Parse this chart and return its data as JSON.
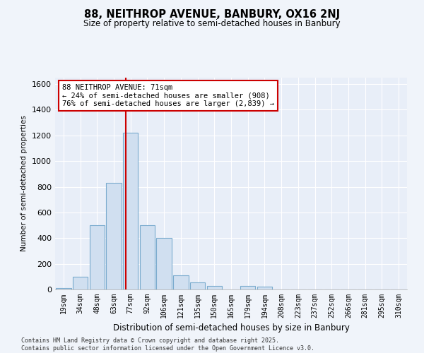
{
  "title_line1": "88, NEITHROP AVENUE, BANBURY, OX16 2NJ",
  "title_line2": "Size of property relative to semi-detached houses in Banbury",
  "xlabel": "Distribution of semi-detached houses by size in Banbury",
  "ylabel": "Number of semi-detached properties",
  "categories": [
    "19sqm",
    "34sqm",
    "48sqm",
    "63sqm",
    "77sqm",
    "92sqm",
    "106sqm",
    "121sqm",
    "135sqm",
    "150sqm",
    "165sqm",
    "179sqm",
    "194sqm",
    "208sqm",
    "223sqm",
    "237sqm",
    "252sqm",
    "266sqm",
    "281sqm",
    "295sqm",
    "310sqm"
  ],
  "values": [
    10,
    100,
    500,
    830,
    1220,
    500,
    400,
    110,
    55,
    25,
    0,
    25,
    20,
    0,
    0,
    0,
    0,
    0,
    0,
    0,
    0
  ],
  "bar_color": "#d0dff0",
  "bar_edge_color": "#7aabce",
  "vline_position": 3.72,
  "vline_color": "#cc0000",
  "annotation_text": "88 NEITHROP AVENUE: 71sqm\n← 24% of semi-detached houses are smaller (908)\n76% of semi-detached houses are larger (2,839) →",
  "annotation_box_facecolor": "#ffffff",
  "annotation_box_edgecolor": "#cc0000",
  "ylim": [
    0,
    1650
  ],
  "yticks": [
    0,
    200,
    400,
    600,
    800,
    1000,
    1200,
    1400,
    1600
  ],
  "bg_color": "#f0f4fa",
  "plot_bg_color": "#e8eef8",
  "grid_color": "#ffffff",
  "footer_line1": "Contains HM Land Registry data © Crown copyright and database right 2025.",
  "footer_line2": "Contains public sector information licensed under the Open Government Licence v3.0."
}
